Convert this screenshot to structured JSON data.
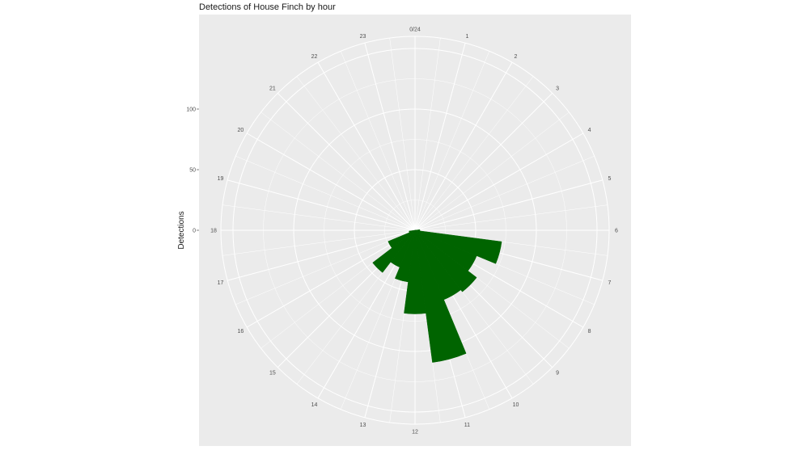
{
  "chart_data": {
    "type": "bar",
    "coord": "polar",
    "title": "Detections of House Finch by hour",
    "ylabel": "Detections",
    "xlabel": "",
    "x_range": [
      0,
      24
    ],
    "ylim": [
      0,
      160
    ],
    "radial_ticks": [
      0,
      50,
      100
    ],
    "hour_labels": [
      "0/24",
      "1",
      "2",
      "3",
      "4",
      "5",
      "6",
      "7",
      "8",
      "9",
      "10",
      "11",
      "12",
      "13",
      "14",
      "15",
      "16",
      "17",
      "18",
      "19",
      "20",
      "21",
      "22",
      "23"
    ],
    "bar_width_hours": 1,
    "grid": true,
    "colors": {
      "bar": "#006400",
      "panel": "#ebebeb",
      "grid": "#ffffff"
    },
    "series": [
      {
        "x": [
          6,
          7,
          8,
          9,
          10,
          11,
          12,
          13,
          14,
          15,
          16,
          17
        ],
        "values": [
          4,
          72,
          55,
          64,
          62,
          110,
          69,
          43,
          33,
          44,
          24,
          5
        ]
      }
    ]
  }
}
